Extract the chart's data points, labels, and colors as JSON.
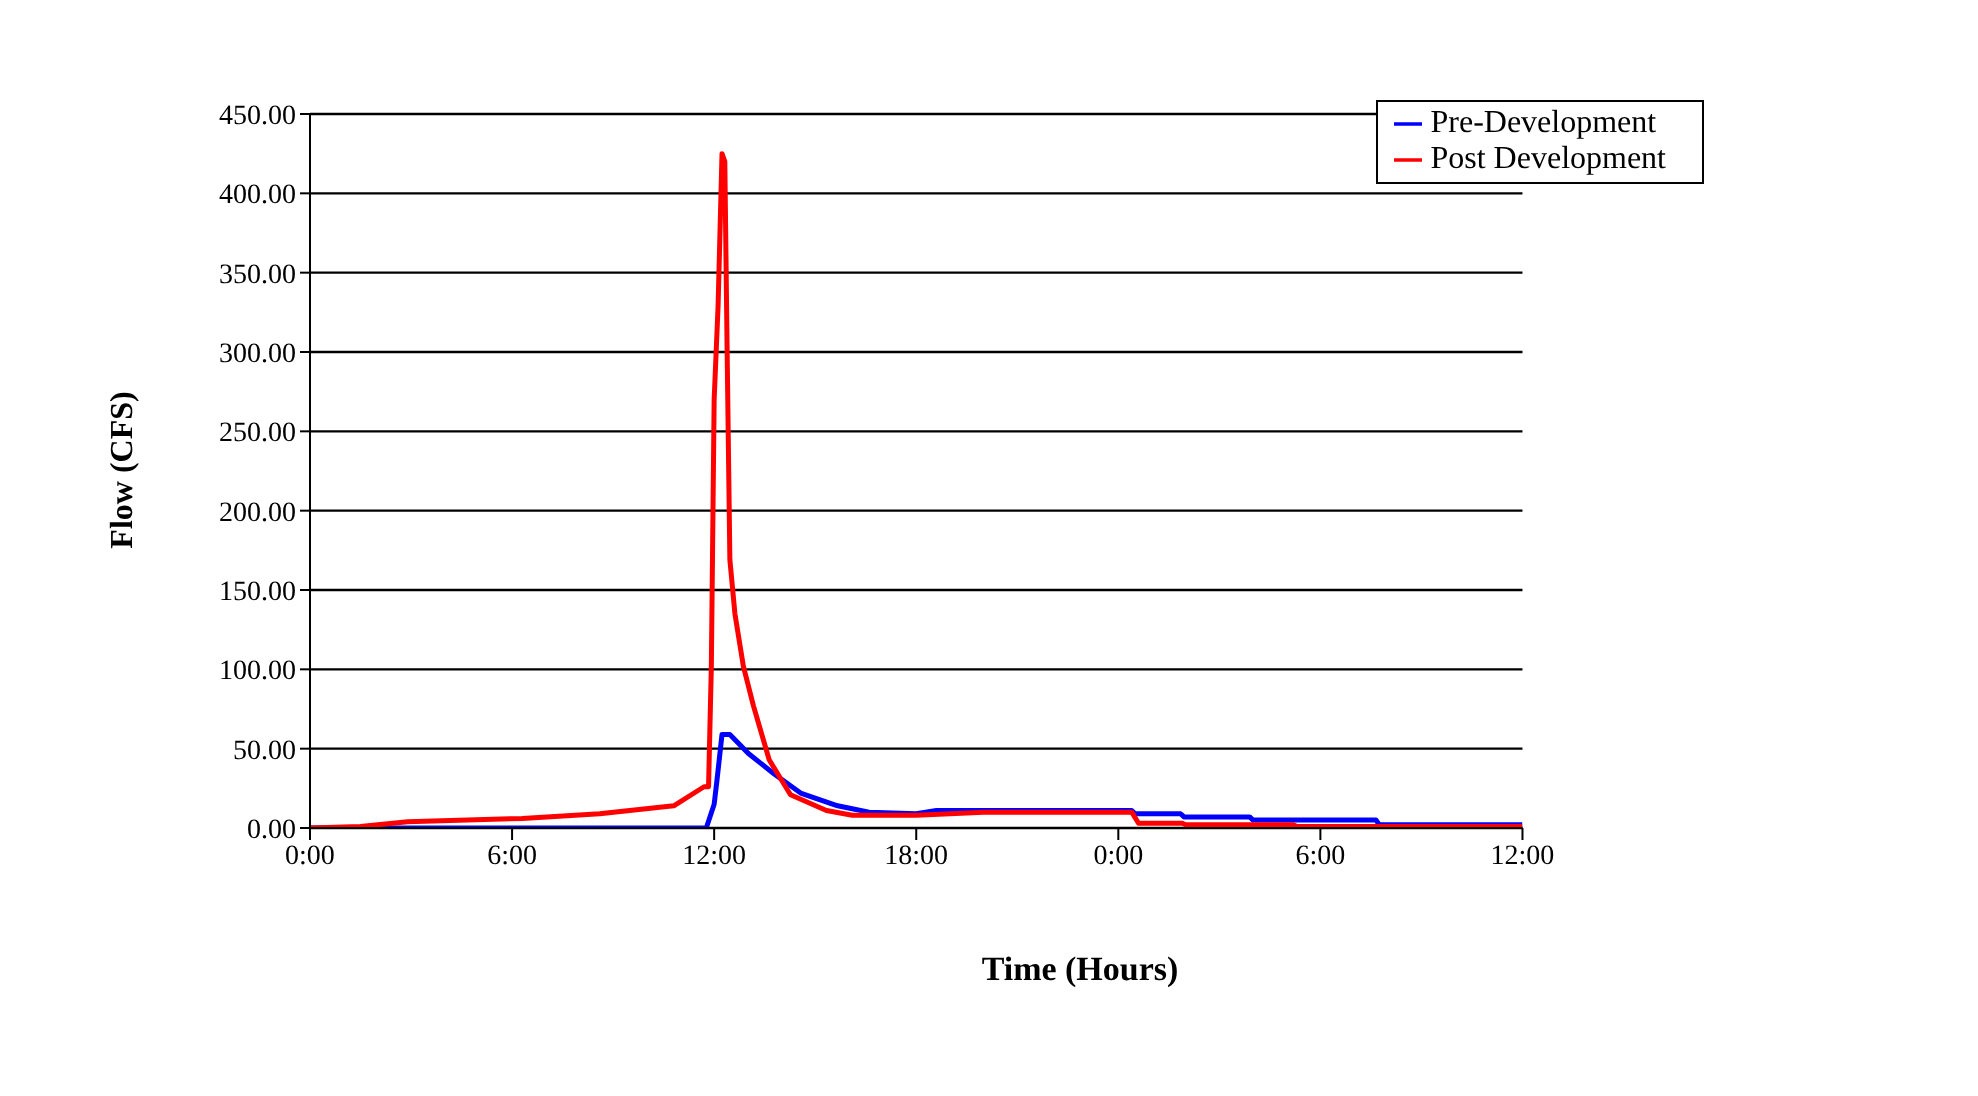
{
  "chart_data": {
    "type": "line",
    "xlabel": "Time (Hours)",
    "ylabel": "Flow (CFS)",
    "xlim": [
      "2000-01-01T00:00",
      "2000-01-02T12:00"
    ],
    "xticks": [
      {
        "value": "2000-01-01T00:00",
        "label": "0:00"
      },
      {
        "value": "2000-01-01T06:00",
        "label": "6:00"
      },
      {
        "value": "2000-01-01T12:00",
        "label": "12:00"
      },
      {
        "value": "2000-01-01T18:00",
        "label": "18:00"
      },
      {
        "value": "2000-01-02T00:00",
        "label": "0:00"
      },
      {
        "value": "2000-01-02T06:00",
        "label": "6:00"
      },
      {
        "value": "2000-01-02T12:00",
        "label": "12:00"
      }
    ],
    "ylim": [
      0,
      450
    ],
    "yticks": [
      {
        "value": 0,
        "label": "0.00"
      },
      {
        "value": 50,
        "label": "50.00"
      },
      {
        "value": 100,
        "label": "100.00"
      },
      {
        "value": 150,
        "label": "150.00"
      },
      {
        "value": 200,
        "label": "200.00"
      },
      {
        "value": 250,
        "label": "250.00"
      },
      {
        "value": 300,
        "label": "300.00"
      },
      {
        "value": 350,
        "label": "350.00"
      },
      {
        "value": 400,
        "label": "400.00"
      },
      {
        "value": 450,
        "label": "450.00"
      }
    ],
    "grid": "y",
    "legend": "top right",
    "marker": "none",
    "line_style": "solid",
    "series": [
      {
        "name": "Pre-Development",
        "color": "#0000ff",
        "x": [
          "2000-01-01T00:00",
          "2000-01-01T11:46",
          "2000-01-01T12:00",
          "2000-01-01T12:05",
          "2000-01-01T12:14",
          "2000-01-01T12:28",
          "2000-01-01T13:01",
          "2000-01-01T13:47",
          "2000-01-01T14:34",
          "2000-01-01T15:40",
          "2000-01-01T16:08",
          "2000-01-01T16:36",
          "2000-01-01T18:00",
          "2000-01-01T18:36",
          "2000-01-02T00:24",
          "2000-01-02T00:30",
          "2000-01-02T01:51",
          "2000-01-02T01:57",
          "2000-01-02T03:54",
          "2000-01-02T04:00",
          "2000-01-02T07:39",
          "2000-01-02T07:45",
          "2000-01-02T12:00"
        ],
        "values": [
          0,
          0,
          15,
          30,
          59,
          59,
          47,
          34,
          22,
          14,
          12,
          10,
          9,
          11,
          11,
          9,
          9,
          7,
          7,
          5,
          5,
          2,
          2
        ]
      },
      {
        "name": "Post Development",
        "color": "#ff0000",
        "x": [
          "2000-01-01T00:00",
          "2000-01-01T01:30",
          "2000-01-01T02:54",
          "2000-01-01T06:18",
          "2000-01-01T08:36",
          "2000-01-01T10:48",
          "2000-01-01T11:42",
          "2000-01-01T11:50",
          "2000-01-01T11:55",
          "2000-01-01T12:00",
          "2000-01-01T12:07",
          "2000-01-01T12:14",
          "2000-01-01T12:19",
          "2000-01-01T12:23",
          "2000-01-01T12:28",
          "2000-01-01T12:37",
          "2000-01-01T12:52",
          "2000-01-01T13:10",
          "2000-01-01T13:38",
          "2000-01-01T14:16",
          "2000-01-01T15:20",
          "2000-01-01T16:06",
          "2000-01-01T18:00",
          "2000-01-01T20:00",
          "2000-01-01T21:06",
          "2000-01-02T00:24",
          "2000-01-02T00:36",
          "2000-01-02T01:54",
          "2000-01-02T02:00",
          "2000-01-02T05:12",
          "2000-01-02T05:18",
          "2000-01-02T12:00"
        ],
        "values": [
          0,
          1,
          4,
          6,
          9,
          14,
          26,
          26,
          102,
          270,
          329,
          425,
          420,
          304,
          169,
          135,
          102,
          77,
          43,
          21,
          11,
          8,
          8,
          10,
          10,
          10,
          3,
          3,
          2,
          2,
          1,
          1
        ]
      }
    ]
  }
}
